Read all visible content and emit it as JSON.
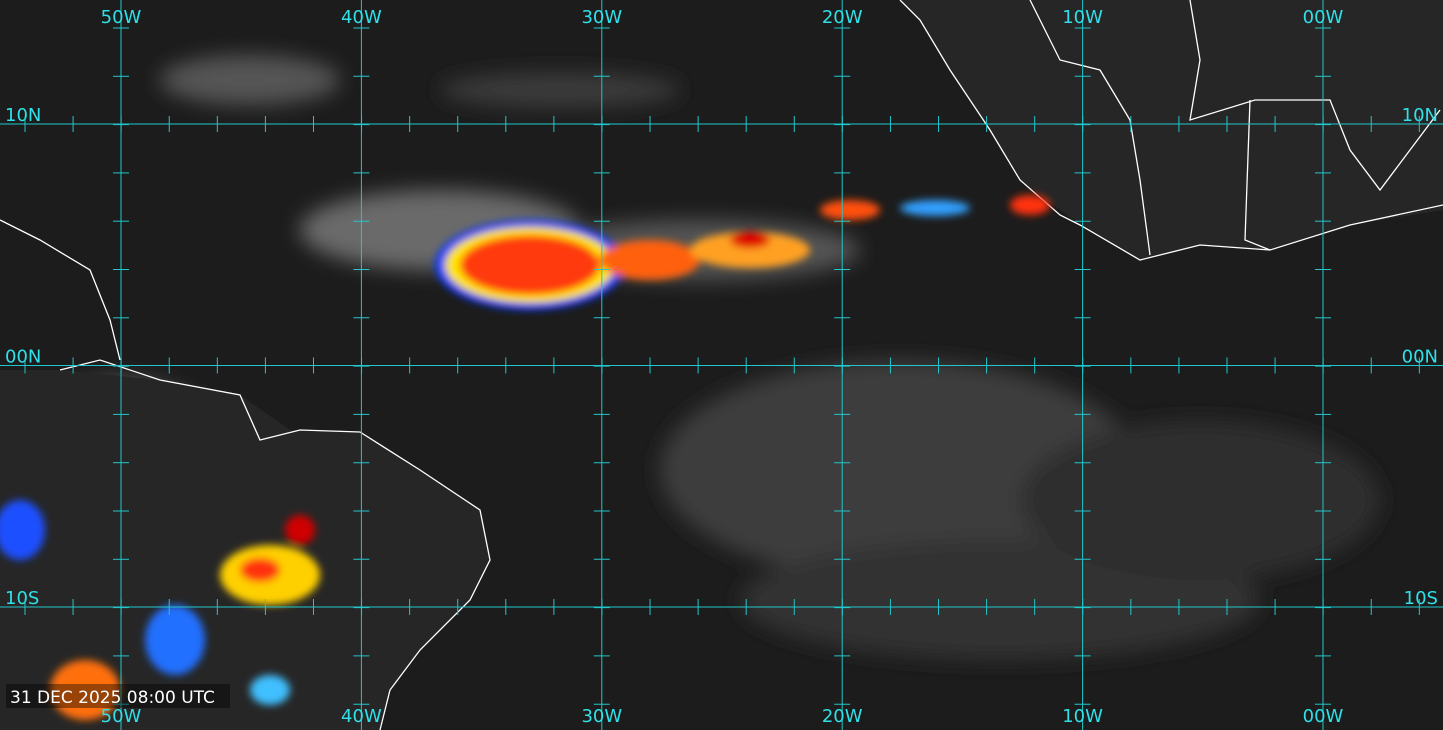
{
  "map": {
    "lon_labels": [
      "50W",
      "40W",
      "30W",
      "20W",
      "10W",
      "00W"
    ],
    "lat_labels": [
      "10N",
      "00N",
      "10S"
    ],
    "timestamp": "31 DEC 2025 08:00 UTC"
  }
}
